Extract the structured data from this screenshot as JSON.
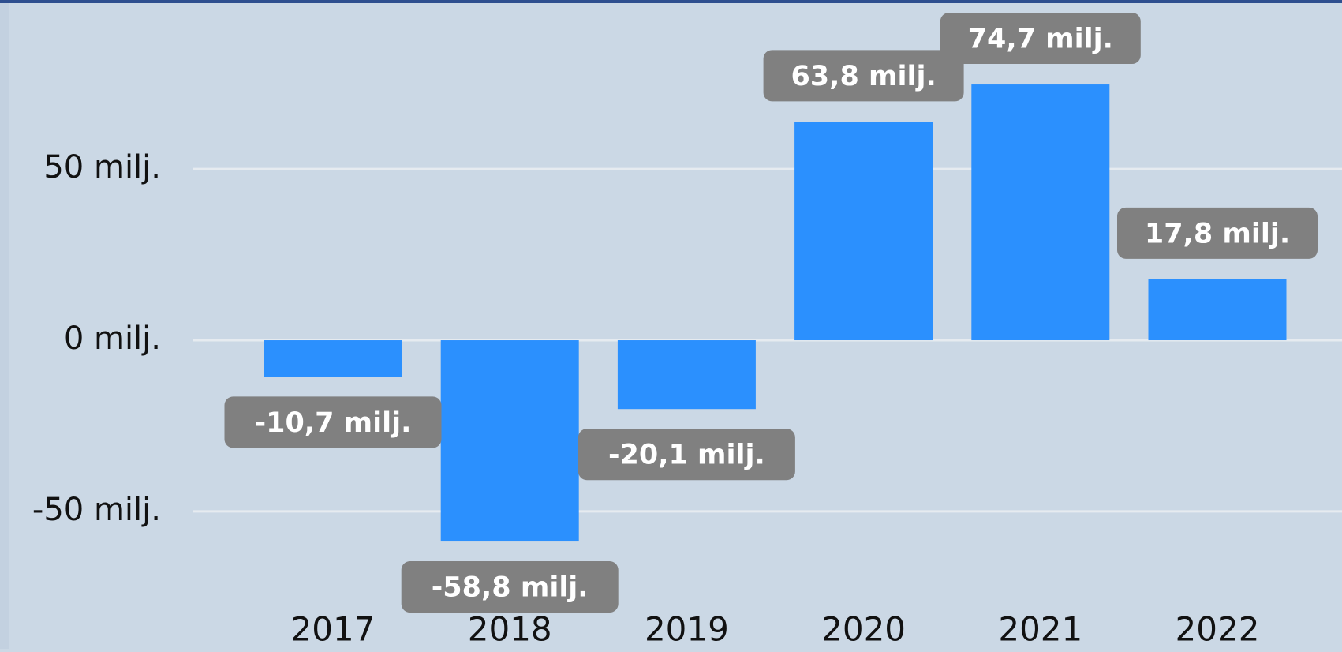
{
  "chart_data": {
    "type": "bar",
    "categories": [
      "2017",
      "2018",
      "2019",
      "2020",
      "2021",
      "2022"
    ],
    "values": [
      -10.7,
      -58.8,
      -20.1,
      63.8,
      74.7,
      17.8
    ],
    "value_labels": [
      "-10,7 milj.",
      "-58,8 milj.",
      "-20,1 milj.",
      "63,8 milj.",
      "74,7 milj.",
      "17,8 milj."
    ],
    "color": "#2b90fe",
    "ylim": [
      -80,
      95
    ],
    "yticks": [
      {
        "value": -50,
        "label": "-50 milj."
      },
      {
        "value": 0,
        "label": "0 milj."
      },
      {
        "value": 50,
        "label": "50 milj."
      }
    ],
    "grid": true
  }
}
